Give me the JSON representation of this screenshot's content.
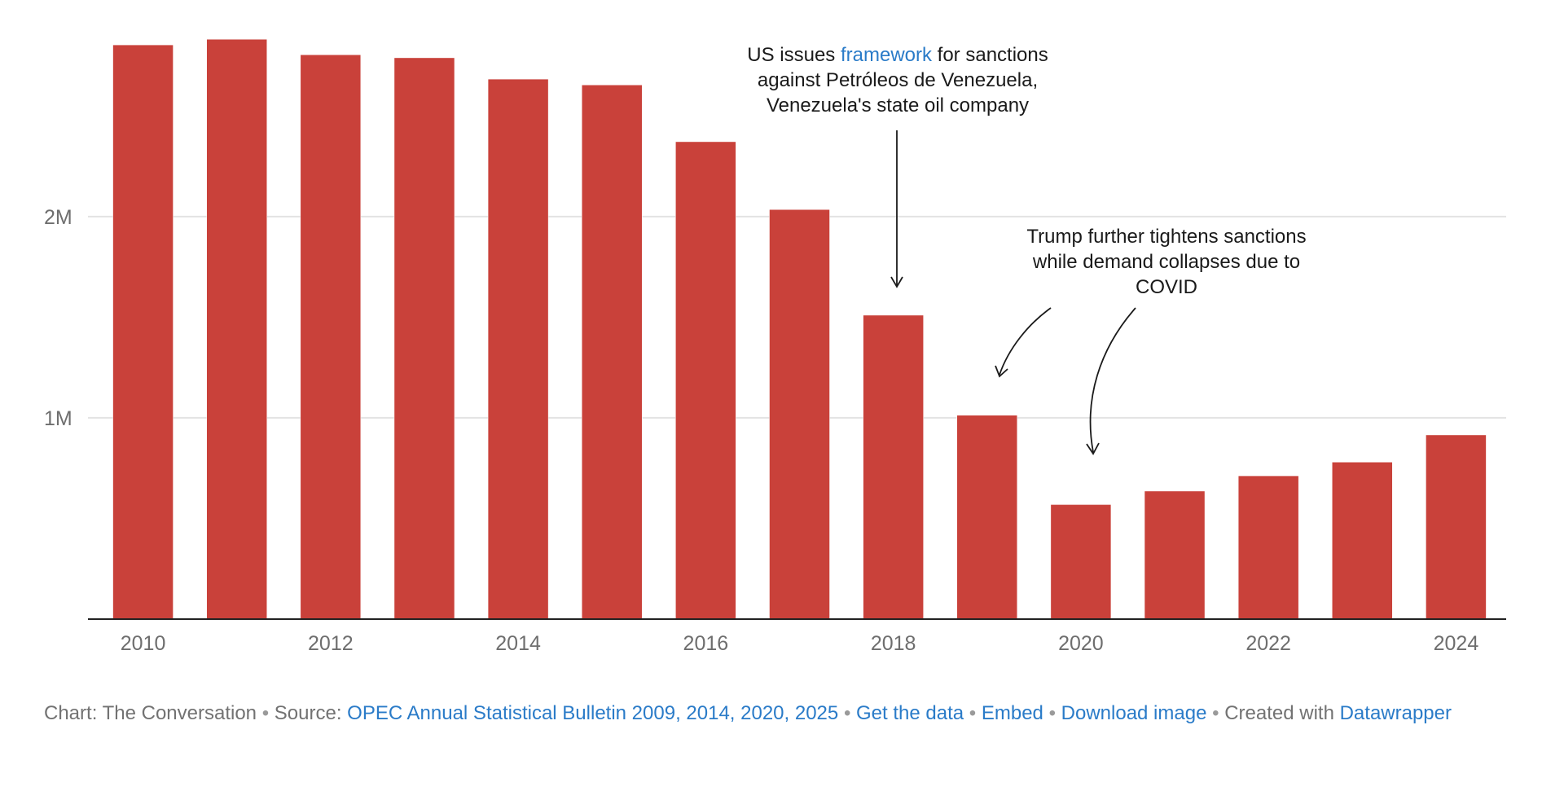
{
  "chart_data": {
    "type": "bar",
    "categories": [
      "2010",
      "2011",
      "2012",
      "2013",
      "2014",
      "2015",
      "2016",
      "2017",
      "2018",
      "2019",
      "2020",
      "2021",
      "2022",
      "2023",
      "2024"
    ],
    "values": [
      2853000,
      2881000,
      2804000,
      2789000,
      2683000,
      2654000,
      2372000,
      2035000,
      1510000,
      1013000,
      569000,
      636000,
      712000,
      780000,
      915000
    ],
    "ylim": [
      0,
      2900000
    ],
    "yticks": [
      1000000,
      2000000
    ],
    "ytick_labels": [
      "1M",
      "2M"
    ],
    "xtick_labels": [
      "2010",
      "2012",
      "2014",
      "2016",
      "2018",
      "2020",
      "2022",
      "2024"
    ],
    "bar_color": "#c9413a",
    "gridline_color": "#e3e3e3",
    "title": "",
    "xlabel": "",
    "ylabel": "",
    "annotations": [
      {
        "lines": [
          [
            {
              "text": "US issues "
            },
            {
              "text": "framework",
              "link": true
            },
            {
              "text": " for sanctions"
            }
          ],
          [
            {
              "text": "against Petróleos de Venezuela,"
            }
          ],
          [
            {
              "text": "Venezuela's state oil company"
            }
          ]
        ],
        "points_to": "2018"
      },
      {
        "lines": [
          [
            {
              "text": "Trump further tightens sanctions"
            }
          ],
          [
            {
              "text": "while demand collapses due to"
            }
          ],
          [
            {
              "text": "COVID"
            }
          ]
        ],
        "points_to": [
          "2019",
          "2020"
        ]
      }
    ]
  },
  "footer": {
    "chart_label": "Chart: The Conversation",
    "source_label": "Source:",
    "source_link": "OPEC Annual Statistical Bulletin 2009, 2014, 2020, 2025",
    "get_data": "Get the data",
    "embed": "Embed",
    "download": "Download image",
    "created_with": "Created with",
    "datawrapper": "Datawrapper",
    "separator": "•"
  }
}
